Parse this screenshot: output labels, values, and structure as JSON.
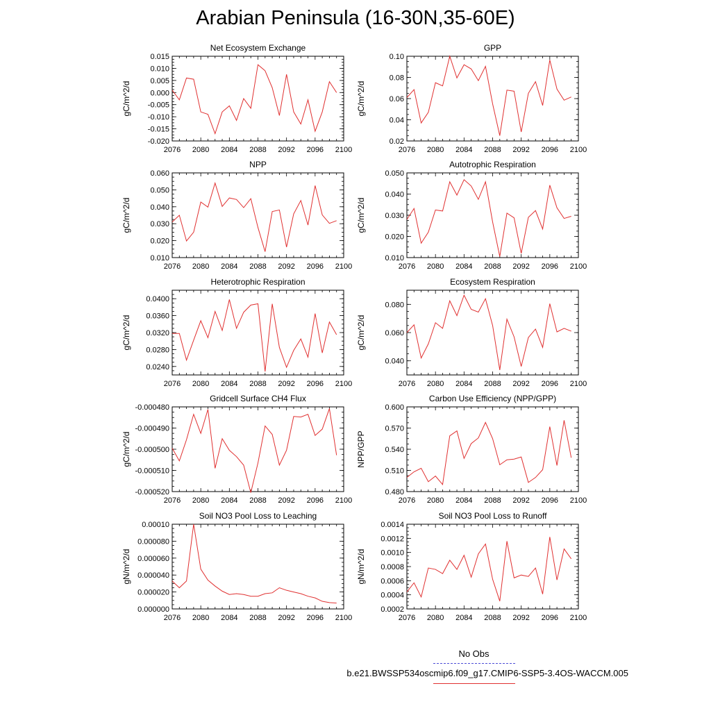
{
  "page_title": "Arabian Peninsula (16-30N,35-60E)",
  "legend": {
    "obs_label": "No Obs",
    "obs_color": "#4b4bd6",
    "run_label": "b.e21.BWSSP534oscmip6.f09_g17.CMIP6-SSP5-3.4OS-WACCM.005",
    "run_color": "#e03030"
  },
  "line_color": "#e03030",
  "chart_data": [
    {
      "type": "line",
      "title": "Net Ecosystem Exchange",
      "ylabel": "gC/m^2/d",
      "xlim": [
        2076,
        2100
      ],
      "ylim": [
        -0.02,
        0.015
      ],
      "xticks": [
        2076,
        2080,
        2084,
        2088,
        2092,
        2096,
        2100
      ],
      "yticks": [
        "0.015",
        "0.010",
        "0.005",
        "0.000",
        "-0.005",
        "-0.010",
        "-0.015",
        "-0.020"
      ],
      "ytick_values": [
        0.015,
        0.01,
        0.005,
        0.0,
        -0.005,
        -0.01,
        -0.015,
        -0.02
      ],
      "x": [
        2076,
        2077,
        2078,
        2079,
        2080,
        2081,
        2082,
        2083,
        2084,
        2085,
        2086,
        2087,
        2088,
        2089,
        2090,
        2091,
        2092,
        2093,
        2094,
        2095,
        2096,
        2097,
        2098,
        2099
      ],
      "y": [
        0.001,
        -0.003,
        0.006,
        0.0055,
        -0.008,
        -0.009,
        -0.017,
        -0.008,
        -0.0055,
        -0.0115,
        -0.0025,
        -0.0065,
        0.0115,
        0.009,
        0.002,
        -0.0095,
        0.0075,
        -0.008,
        -0.013,
        -0.003,
        -0.016,
        -0.008,
        0.0045,
        0.0
      ]
    },
    {
      "type": "line",
      "title": "GPP",
      "ylabel": "gC/m^2/d",
      "xlim": [
        2076,
        2100
      ],
      "ylim": [
        0.02,
        0.1
      ],
      "xticks": [
        2076,
        2080,
        2084,
        2088,
        2092,
        2096,
        2100
      ],
      "yticks": [
        "0.10",
        "0.08",
        "0.06",
        "0.04",
        "0.02"
      ],
      "ytick_values": [
        0.1,
        0.08,
        0.06,
        0.04,
        0.02
      ],
      "x": [
        2076,
        2077,
        2078,
        2079,
        2080,
        2081,
        2082,
        2083,
        2084,
        2085,
        2086,
        2087,
        2088,
        2089,
        2090,
        2091,
        2092,
        2093,
        2094,
        2095,
        2096,
        2097,
        2098,
        2099
      ],
      "y": [
        0.061,
        0.0685,
        0.037,
        0.047,
        0.075,
        0.072,
        0.1,
        0.0795,
        0.092,
        0.088,
        0.077,
        0.0905,
        0.055,
        0.025,
        0.068,
        0.067,
        0.0285,
        0.065,
        0.076,
        0.0535,
        0.0965,
        0.069,
        0.0585,
        0.0615
      ]
    },
    {
      "type": "line",
      "title": "NPP",
      "ylabel": "gC/m^2/d",
      "xlim": [
        2076,
        2100
      ],
      "ylim": [
        0.01,
        0.06
      ],
      "xticks": [
        2076,
        2080,
        2084,
        2088,
        2092,
        2096,
        2100
      ],
      "yticks": [
        "0.060",
        "0.050",
        "0.040",
        "0.030",
        "0.020",
        "0.010"
      ],
      "ytick_values": [
        0.06,
        0.05,
        0.04,
        0.03,
        0.02,
        0.01
      ],
      "x": [
        2076,
        2077,
        2078,
        2079,
        2080,
        2081,
        2082,
        2083,
        2084,
        2085,
        2086,
        2087,
        2088,
        2089,
        2090,
        2091,
        2092,
        2093,
        2094,
        2095,
        2096,
        2097,
        2098,
        2099
      ],
      "y": [
        0.031,
        0.035,
        0.0198,
        0.025,
        0.0428,
        0.0398,
        0.054,
        0.0402,
        0.0452,
        0.0443,
        0.0395,
        0.0448,
        0.0278,
        0.0135,
        0.0372,
        0.0381,
        0.0162,
        0.0358,
        0.0437,
        0.0292,
        0.0525,
        0.0352,
        0.0302,
        0.0318
      ]
    },
    {
      "type": "line",
      "title": "Autotrophic Respiration",
      "ylabel": "gC/m^2/d",
      "xlim": [
        2076,
        2100
      ],
      "ylim": [
        0.01,
        0.05
      ],
      "xticks": [
        2076,
        2080,
        2084,
        2088,
        2092,
        2096,
        2100
      ],
      "yticks": [
        "0.050",
        "0.040",
        "0.030",
        "0.020",
        "0.010"
      ],
      "ytick_values": [
        0.05,
        0.04,
        0.03,
        0.02,
        0.01
      ],
      "x": [
        2076,
        2077,
        2078,
        2079,
        2080,
        2081,
        2082,
        2083,
        2084,
        2085,
        2086,
        2087,
        2088,
        2089,
        2090,
        2091,
        2092,
        2093,
        2094,
        2095,
        2096,
        2097,
        2098,
        2099
      ],
      "y": [
        0.028,
        0.0332,
        0.0168,
        0.022,
        0.0325,
        0.032,
        0.0458,
        0.0395,
        0.0468,
        0.0438,
        0.0375,
        0.0458,
        0.0268,
        0.0105,
        0.031,
        0.0288,
        0.012,
        0.029,
        0.0322,
        0.0235,
        0.0442,
        0.0335,
        0.0285,
        0.0295
      ]
    },
    {
      "type": "line",
      "title": "Heterotrophic Respiration",
      "ylabel": "gC/m^2/d",
      "xlim": [
        2076,
        2100
      ],
      "ylim": [
        0.022,
        0.042
      ],
      "xticks": [
        2076,
        2080,
        2084,
        2088,
        2092,
        2096,
        2100
      ],
      "yticks": [
        "0.0400",
        "0.0360",
        "0.0320",
        "0.0280",
        "0.0240"
      ],
      "ytick_values": [
        0.04,
        0.036,
        0.032,
        0.028,
        0.024
      ],
      "x": [
        2076,
        2077,
        2078,
        2079,
        2080,
        2081,
        2082,
        2083,
        2084,
        2085,
        2086,
        2087,
        2088,
        2089,
        2090,
        2091,
        2092,
        2093,
        2094,
        2095,
        2096,
        2097,
        2098,
        2099
      ],
      "y": [
        0.0318,
        0.0318,
        0.0255,
        0.0302,
        0.0348,
        0.0308,
        0.037,
        0.0325,
        0.0398,
        0.033,
        0.0368,
        0.0385,
        0.0388,
        0.0228,
        0.0388,
        0.0285,
        0.0238,
        0.0278,
        0.0305,
        0.0262,
        0.0365,
        0.0272,
        0.0345,
        0.0315
      ]
    },
    {
      "type": "line",
      "title": "Ecosystem Respiration",
      "ylabel": "gC/m^2/d",
      "xlim": [
        2076,
        2100
      ],
      "ylim": [
        0.03,
        0.09
      ],
      "xticks": [
        2076,
        2080,
        2084,
        2088,
        2092,
        2096,
        2100
      ],
      "yticks": [
        "0.080",
        "0.060",
        "0.040"
      ],
      "ytick_values": [
        0.08,
        0.06,
        0.04
      ],
      "x": [
        2076,
        2077,
        2078,
        2079,
        2080,
        2081,
        2082,
        2083,
        2084,
        2085,
        2086,
        2087,
        2088,
        2089,
        2090,
        2091,
        2092,
        2093,
        2094,
        2095,
        2096,
        2097,
        2098,
        2099
      ],
      "y": [
        0.06,
        0.0655,
        0.042,
        0.052,
        0.067,
        0.063,
        0.0825,
        0.072,
        0.0865,
        0.0765,
        0.0745,
        0.084,
        0.065,
        0.0335,
        0.0695,
        0.057,
        0.036,
        0.0565,
        0.0625,
        0.0495,
        0.0805,
        0.0605,
        0.063,
        0.061
      ]
    },
    {
      "type": "line",
      "title": "Gridcell Surface CH4 Flux",
      "ylabel": "gC/m^2/d",
      "xlim": [
        2076,
        2100
      ],
      "ylim": [
        -0.00052,
        -0.00048
      ],
      "xticks": [
        2076,
        2080,
        2084,
        2088,
        2092,
        2096,
        2100
      ],
      "yticks": [
        "-0.000480",
        "-0.000490",
        "-0.000500",
        "-0.000510",
        "-0.000520"
      ],
      "ytick_values": [
        -0.00048,
        -0.00049,
        -0.0005,
        -0.00051,
        -0.00052
      ],
      "x": [
        2076,
        2077,
        2078,
        2079,
        2080,
        2081,
        2082,
        2083,
        2084,
        2085,
        2086,
        2087,
        2088,
        2089,
        2090,
        2091,
        2092,
        2093,
        2094,
        2095,
        2096,
        2097,
        2098,
        2099
      ],
      "y": [
        -0.0004995,
        -0.0005055,
        -0.0004955,
        -0.0004835,
        -0.0004925,
        -0.0004812,
        -0.000509,
        -0.000495,
        -0.0005005,
        -0.0005035,
        -0.0005075,
        -0.0005205,
        -0.0005065,
        -0.000489,
        -0.000493,
        -0.0005075,
        -0.0005005,
        -0.0004845,
        -0.0004848,
        -0.0004835,
        -0.0004935,
        -0.0004905,
        -0.0004808,
        -0.0005028
      ]
    },
    {
      "type": "line",
      "title": "Carbon Use Efficiency (NPP/GPP)",
      "ylabel": "NPP/GPP",
      "xlim": [
        2076,
        2100
      ],
      "ylim": [
        0.48,
        0.6
      ],
      "xticks": [
        2076,
        2080,
        2084,
        2088,
        2092,
        2096,
        2100
      ],
      "yticks": [
        "0.600",
        "0.570",
        "0.540",
        "0.510",
        "0.480"
      ],
      "ytick_values": [
        0.6,
        0.57,
        0.54,
        0.51,
        0.48
      ],
      "x": [
        2076,
        2077,
        2078,
        2079,
        2080,
        2081,
        2082,
        2083,
        2084,
        2085,
        2086,
        2087,
        2088,
        2089,
        2090,
        2091,
        2092,
        2093,
        2094,
        2095,
        2096,
        2097,
        2098,
        2099
      ],
      "y": [
        0.5,
        0.508,
        0.513,
        0.494,
        0.502,
        0.49,
        0.559,
        0.566,
        0.527,
        0.548,
        0.556,
        0.578,
        0.555,
        0.518,
        0.525,
        0.526,
        0.529,
        0.493,
        0.5,
        0.511,
        0.572,
        0.517,
        0.581,
        0.528
      ]
    },
    {
      "type": "line",
      "title": "Soil NO3 Pool Loss to Leaching",
      "ylabel": "gN/m^2/d",
      "xlim": [
        2076,
        2100
      ],
      "ylim": [
        0.0,
        0.0001
      ],
      "xticks": [
        2076,
        2080,
        2084,
        2088,
        2092,
        2096,
        2100
      ],
      "yticks": [
        "0.00010",
        "0.000080",
        "0.000060",
        "0.000040",
        "0.000020",
        "0.000000"
      ],
      "ytick_values": [
        0.0001,
        8e-05,
        6e-05,
        4e-05,
        2e-05,
        0.0
      ],
      "x": [
        2076,
        2077,
        2078,
        2079,
        2080,
        2081,
        2082,
        2083,
        2084,
        2085,
        2086,
        2087,
        2088,
        2089,
        2090,
        2091,
        2092,
        2093,
        2094,
        2095,
        2096,
        2097,
        2098,
        2099
      ],
      "y": [
        3.3e-05,
        2.5e-05,
        3.3e-05,
        0.0001,
        4.7e-05,
        3.4e-05,
        2.7e-05,
        2.1e-05,
        1.7e-05,
        1.8e-05,
        1.7e-05,
        1.5e-05,
        1.5e-05,
        1.8e-05,
        1.9e-05,
        2.5e-05,
        2.2e-05,
        2e-05,
        1.8e-05,
        1.5e-05,
        1.3e-05,
        9e-06,
        7.5e-06,
        7e-06
      ]
    },
    {
      "type": "line",
      "title": "Soil NO3 Pool Loss to Runoff",
      "ylabel": "gN/m^2/d",
      "xlim": [
        2076,
        2100
      ],
      "ylim": [
        0.0002,
        0.0014
      ],
      "xticks": [
        2076,
        2080,
        2084,
        2088,
        2092,
        2096,
        2100
      ],
      "yticks": [
        "0.0014",
        "0.0012",
        "0.0010",
        "0.0008",
        "0.0006",
        "0.0004",
        "0.0002"
      ],
      "ytick_values": [
        0.0014,
        0.0012,
        0.001,
        0.0008,
        0.0006,
        0.0004,
        0.0002
      ],
      "x": [
        2076,
        2077,
        2078,
        2079,
        2080,
        2081,
        2082,
        2083,
        2084,
        2085,
        2086,
        2087,
        2088,
        2089,
        2090,
        2091,
        2092,
        2093,
        2094,
        2095,
        2096,
        2097,
        2098,
        2099
      ],
      "y": [
        0.00044,
        0.00057,
        0.00037,
        0.00078,
        0.00076,
        0.0007,
        0.00089,
        0.00076,
        0.00096,
        0.00065,
        0.00098,
        0.00112,
        0.00062,
        0.00031,
        0.00116,
        0.00064,
        0.00068,
        0.00066,
        0.00078,
        0.00041,
        0.00122,
        0.00061,
        0.00105,
        0.00091
      ]
    }
  ]
}
